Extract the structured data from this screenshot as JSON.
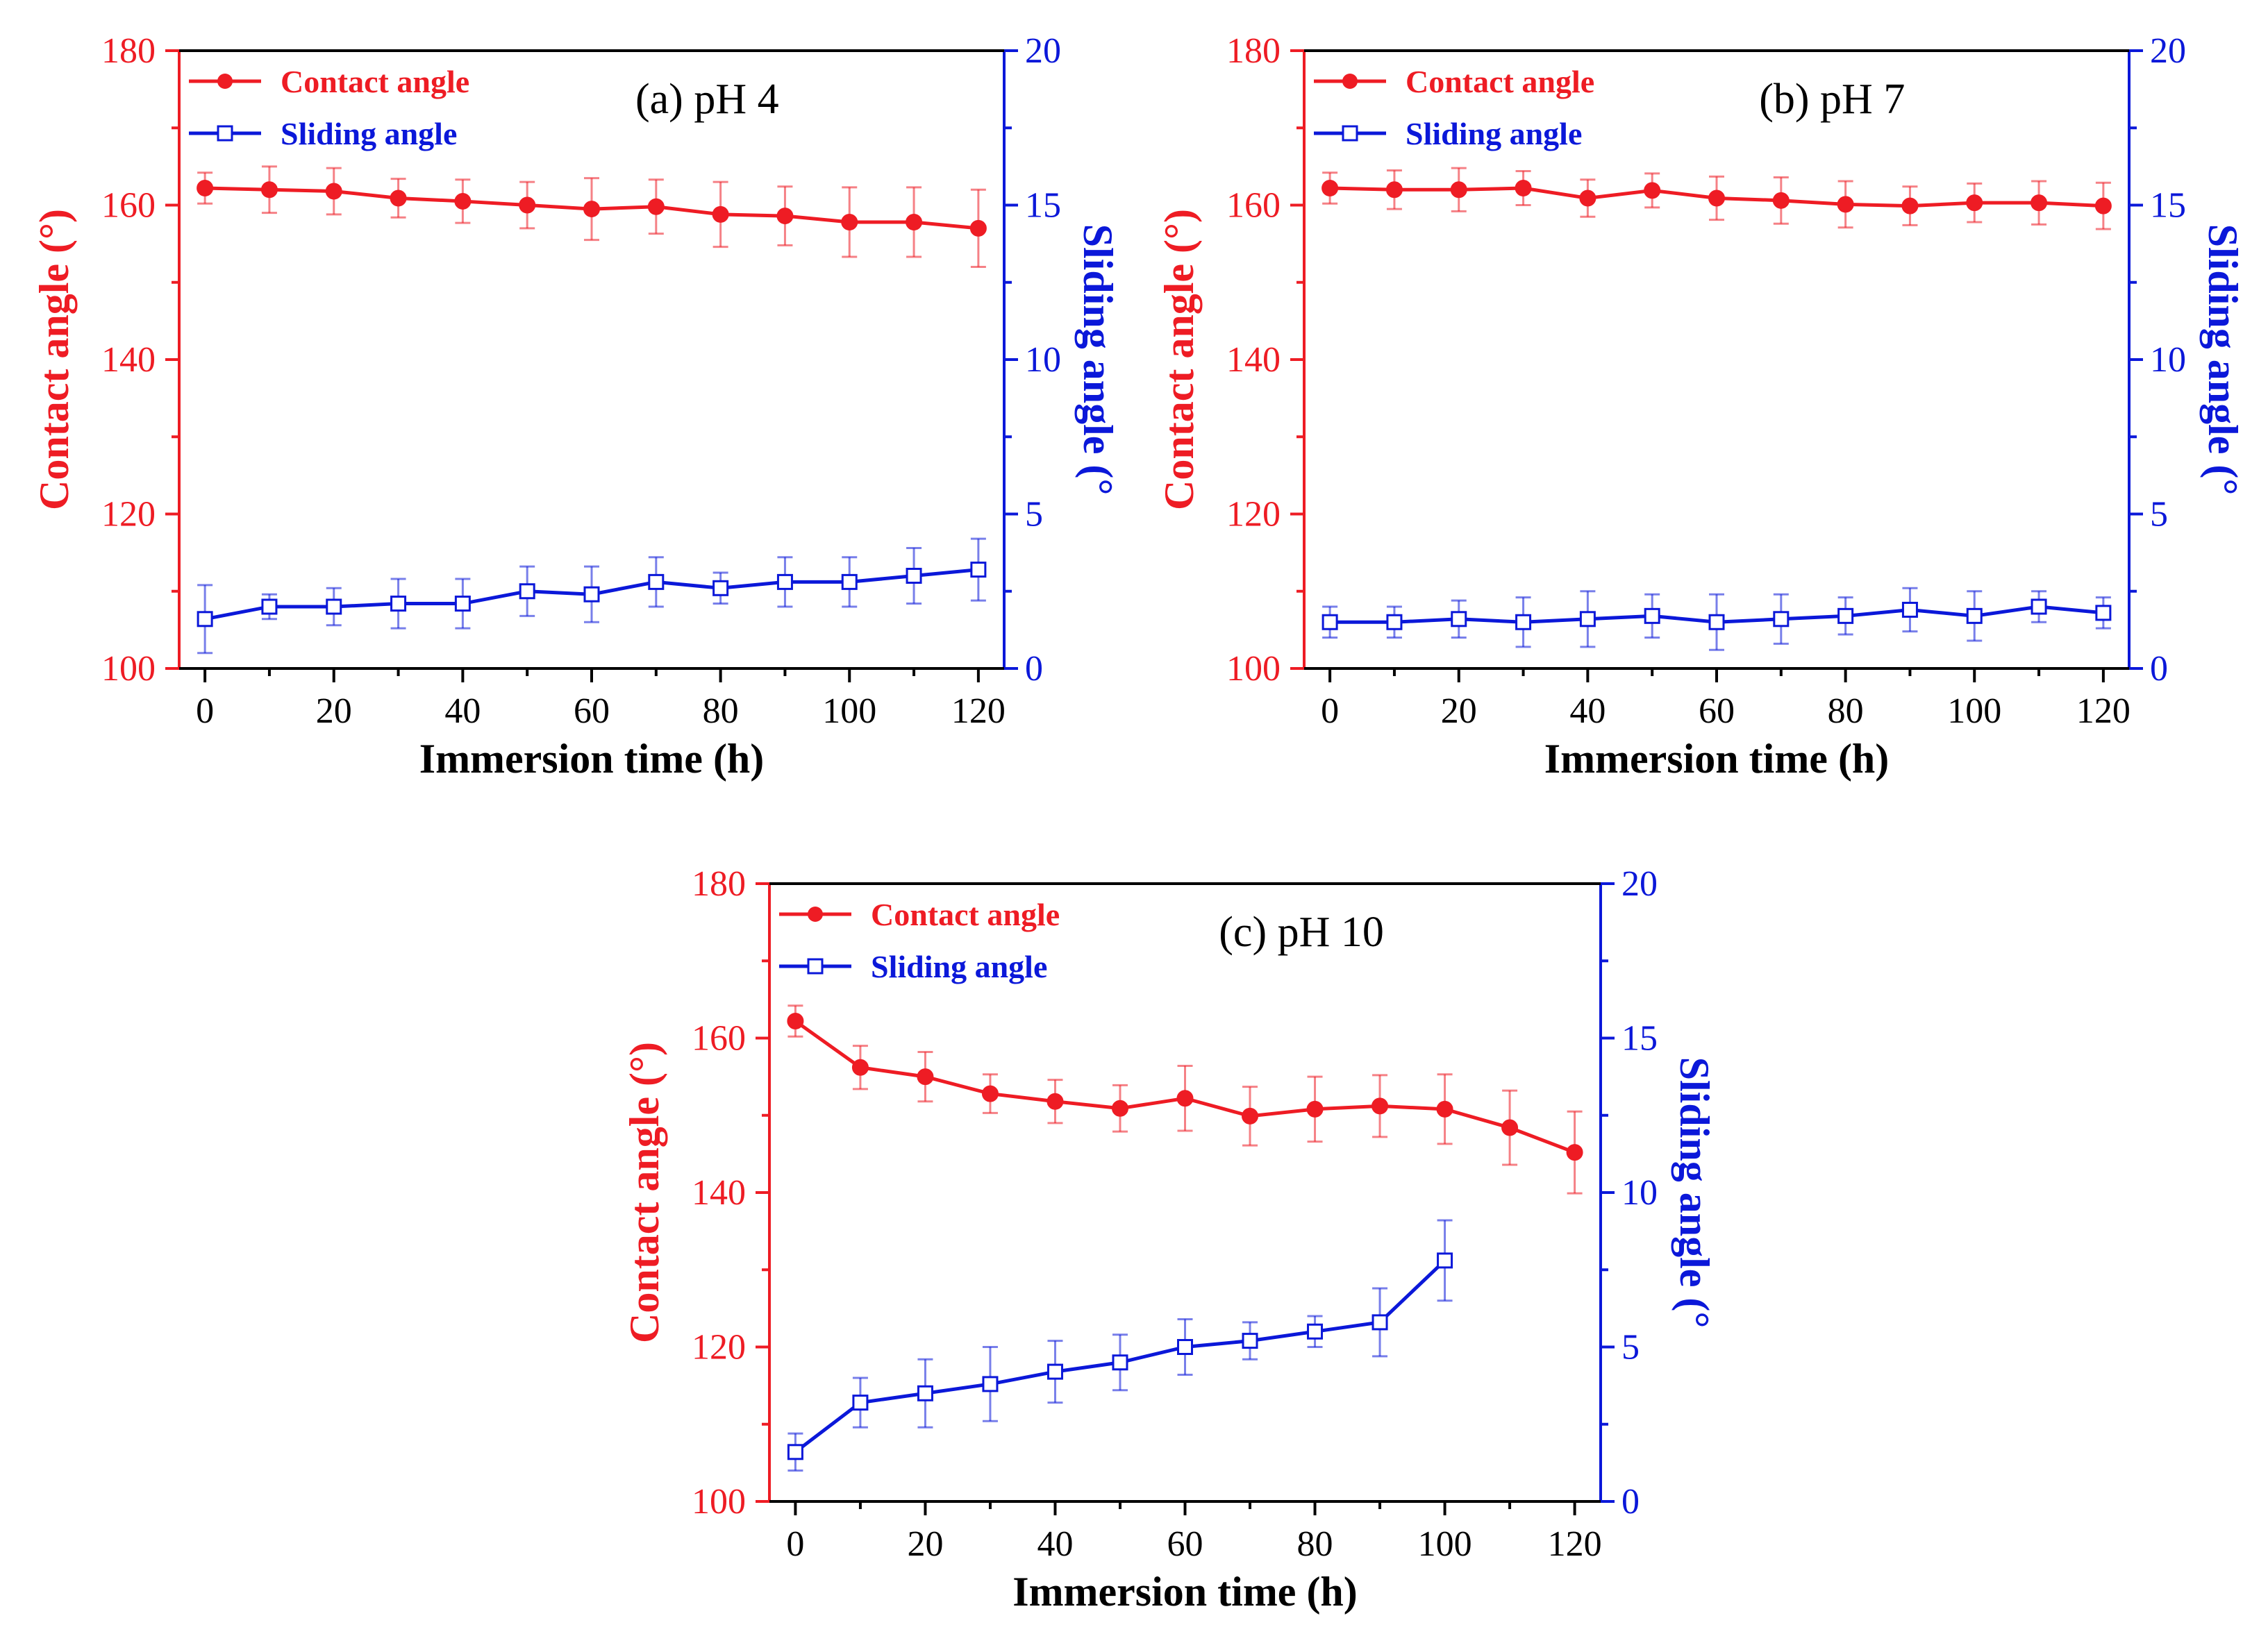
{
  "chart_data": [
    {
      "id": "a",
      "type": "line",
      "panel_label": "(a) pH 4",
      "xlabel": "Immersion time (h)",
      "ylabel_left": "Contact angle (°)",
      "ylabel_right": "Sliding angle (°",
      "xlim": [
        -4,
        124
      ],
      "xticks": [
        0,
        20,
        40,
        60,
        80,
        100,
        120
      ],
      "ylim_left": [
        100,
        180
      ],
      "yticks_left": [
        100,
        120,
        140,
        160,
        180
      ],
      "ylim_right": [
        0,
        20
      ],
      "yticks_right": [
        0,
        5,
        10,
        15,
        20
      ],
      "legend_position": "top-left",
      "series": [
        {
          "name": "Contact angle",
          "axis": "left",
          "color": "#ee1c24",
          "marker": "filled-circle",
          "x": [
            0,
            10,
            20,
            30,
            40,
            50,
            60,
            70,
            80,
            90,
            100,
            110,
            120
          ],
          "values": [
            162.2,
            162.0,
            161.8,
            160.9,
            160.5,
            160.0,
            159.5,
            159.8,
            158.8,
            158.6,
            157.8,
            157.8,
            157.0
          ],
          "errors": [
            2.0,
            3.0,
            3.0,
            2.5,
            2.8,
            3.0,
            4.0,
            3.5,
            4.2,
            3.8,
            4.5,
            4.5,
            5.0
          ]
        },
        {
          "name": "Sliding angle",
          "axis": "right",
          "color": "#0b18d9",
          "marker": "open-square",
          "x": [
            0,
            10,
            20,
            30,
            40,
            50,
            60,
            70,
            80,
            90,
            100,
            110,
            120
          ],
          "values": [
            1.6,
            2.0,
            2.0,
            2.1,
            2.1,
            2.5,
            2.4,
            2.8,
            2.6,
            2.8,
            2.8,
            3.0,
            3.2
          ],
          "errors": [
            1.1,
            0.4,
            0.6,
            0.8,
            0.8,
            0.8,
            0.9,
            0.8,
            0.5,
            0.8,
            0.8,
            0.9,
            1.0
          ]
        }
      ]
    },
    {
      "id": "b",
      "type": "line",
      "panel_label": "(b) pH 7",
      "xlabel": "Immersion time (h)",
      "ylabel_left": "Contact angle (°)",
      "ylabel_right": "Sliding angle (°",
      "xlim": [
        -4,
        124
      ],
      "xticks": [
        0,
        20,
        40,
        60,
        80,
        100,
        120
      ],
      "ylim_left": [
        100,
        180
      ],
      "yticks_left": [
        100,
        120,
        140,
        160,
        180
      ],
      "ylim_right": [
        0,
        20
      ],
      "yticks_right": [
        0,
        5,
        10,
        15,
        20
      ],
      "legend_position": "top-left",
      "series": [
        {
          "name": "Contact angle",
          "axis": "left",
          "color": "#ee1c24",
          "marker": "filled-circle",
          "x": [
            0,
            10,
            20,
            30,
            40,
            50,
            60,
            70,
            80,
            90,
            100,
            110,
            120
          ],
          "values": [
            162.2,
            162.0,
            162.0,
            162.2,
            160.9,
            161.9,
            160.9,
            160.6,
            160.1,
            159.9,
            160.3,
            160.3,
            159.9
          ],
          "errors": [
            2.0,
            2.5,
            2.8,
            2.2,
            2.4,
            2.2,
            2.8,
            3.0,
            3.0,
            2.5,
            2.5,
            2.8,
            3.0
          ]
        },
        {
          "name": "Sliding angle",
          "axis": "right",
          "color": "#0b18d9",
          "marker": "open-square",
          "x": [
            0,
            10,
            20,
            30,
            40,
            50,
            60,
            70,
            80,
            90,
            100,
            110,
            120
          ],
          "values": [
            1.5,
            1.5,
            1.6,
            1.5,
            1.6,
            1.7,
            1.5,
            1.6,
            1.7,
            1.9,
            1.7,
            2.0,
            1.8
          ],
          "errors": [
            0.5,
            0.5,
            0.6,
            0.8,
            0.9,
            0.7,
            0.9,
            0.8,
            0.6,
            0.7,
            0.8,
            0.5,
            0.5
          ]
        }
      ]
    },
    {
      "id": "c",
      "type": "line",
      "panel_label": "(c) pH 10",
      "xlabel": "Immersion time (h)",
      "ylabel_left": "Contact angle (°)",
      "ylabel_right": "Sliding angle (°",
      "xlim": [
        -4,
        124
      ],
      "xticks": [
        0,
        20,
        40,
        60,
        80,
        100,
        120
      ],
      "ylim_left": [
        100,
        180
      ],
      "yticks_left": [
        100,
        120,
        140,
        160,
        180
      ],
      "ylim_right": [
        0,
        20
      ],
      "yticks_right": [
        0,
        5,
        10,
        15,
        20
      ],
      "legend_position": "top-left",
      "series": [
        {
          "name": "Contact angle",
          "axis": "left",
          "color": "#ee1c24",
          "marker": "filled-circle",
          "x": [
            0,
            10,
            20,
            30,
            40,
            50,
            60,
            70,
            80,
            90,
            100,
            110,
            120
          ],
          "values": [
            162.2,
            156.2,
            155.0,
            152.8,
            151.8,
            150.9,
            152.2,
            149.9,
            150.8,
            151.2,
            150.8,
            148.4,
            145.2
          ],
          "errors": [
            2.0,
            2.8,
            3.2,
            2.5,
            2.8,
            3.0,
            4.2,
            3.8,
            4.2,
            4.0,
            4.5,
            4.8,
            5.3
          ]
        },
        {
          "name": "Sliding angle",
          "axis": "right",
          "color": "#0b18d9",
          "marker": "open-square",
          "x": [
            0,
            10,
            20,
            30,
            40,
            50,
            60,
            70,
            80,
            90,
            100
          ],
          "values": [
            1.6,
            3.2,
            3.5,
            3.8,
            4.2,
            4.5,
            5.0,
            5.2,
            5.5,
            5.8,
            7.8
          ],
          "errors": [
            0.6,
            0.8,
            1.1,
            1.2,
            1.0,
            0.9,
            0.9,
            0.6,
            0.5,
            1.1,
            1.3
          ]
        }
      ]
    }
  ]
}
